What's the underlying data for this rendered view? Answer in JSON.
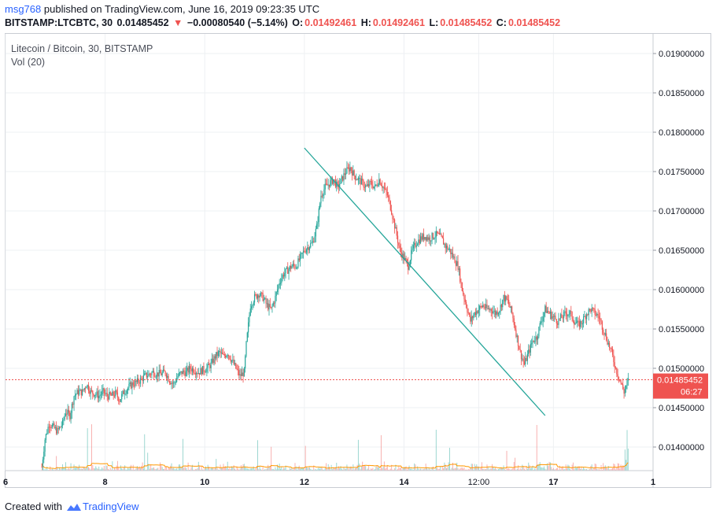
{
  "header": {
    "username": "msg768",
    "published_text": "published on TradingView.com, June 16, 2019 09:23:35 UTC",
    "symbol": "BITSTAMP:LTCBTC, 30",
    "last": "0.01485452",
    "change": "−0.00080540 (−5.14%)",
    "o_label": "O:",
    "o": "0.01492461",
    "h_label": "H:",
    "h": "0.01492461",
    "l_label": "L:",
    "l": "0.01485452",
    "c_label": "C:",
    "c": "0.01485452"
  },
  "legend": {
    "series": "Litecoin / Bitcoin, 30, BITSTAMP",
    "volume": "Vol (20)"
  },
  "footer": {
    "created_with": "Created with",
    "brand": "TradingView"
  },
  "colors": {
    "up": "#26a69a",
    "down": "#ef5350",
    "trendline": "#26a69a",
    "price_line": "#ef5350",
    "ma": "#ff9800"
  },
  "chart_data": {
    "type": "candlestick",
    "y_range": [
      0.0137,
      0.01925
    ],
    "y_ticks": [
      "0.01900000",
      "0.01850000",
      "0.01800000",
      "0.01750000",
      "0.01700000",
      "0.01650000",
      "0.01600000",
      "0.01550000",
      "0.01500000",
      "0.01450000",
      "0.01400000"
    ],
    "x_ticks": [
      {
        "label": "6",
        "t": 0
      },
      {
        "label": "8",
        "t": 96
      },
      {
        "label": "10",
        "t": 192
      },
      {
        "label": "12",
        "t": 288
      },
      {
        "label": "14",
        "t": 384
      },
      {
        "label": "12:00",
        "t": 456
      },
      {
        "label": "17",
        "t": 528
      },
      {
        "label": "1",
        "t": 624
      }
    ],
    "x_range": [
      0,
      624
    ],
    "last_price": "0.01485452",
    "countdown": "06:27",
    "trendline": {
      "from": [
        288,
        0.0178
      ],
      "to": [
        520,
        0.0144
      ]
    },
    "close_path": [
      [
        35,
        0.01375
      ],
      [
        38,
        0.0141
      ],
      [
        42,
        0.0143
      ],
      [
        46,
        0.01425
      ],
      [
        50,
        0.0142
      ],
      [
        55,
        0.0143
      ],
      [
        58,
        0.01445
      ],
      [
        62,
        0.0144
      ],
      [
        66,
        0.01465
      ],
      [
        70,
        0.0147
      ],
      [
        74,
        0.0147
      ],
      [
        78,
        0.0148
      ],
      [
        82,
        0.0147
      ],
      [
        86,
        0.01468
      ],
      [
        90,
        0.01465
      ],
      [
        94,
        0.0147
      ],
      [
        98,
        0.01465
      ],
      [
        102,
        0.01465
      ],
      [
        106,
        0.01468
      ],
      [
        110,
        0.0146
      ],
      [
        114,
        0.0147
      ],
      [
        118,
        0.01475
      ],
      [
        122,
        0.0148
      ],
      [
        126,
        0.01482
      ],
      [
        130,
        0.01485
      ],
      [
        134,
        0.0149
      ],
      [
        138,
        0.01492
      ],
      [
        142,
        0.01495
      ],
      [
        146,
        0.01493
      ],
      [
        150,
        0.01493
      ],
      [
        154,
        0.01495
      ],
      [
        158,
        0.01485
      ],
      [
        162,
        0.0148
      ],
      [
        166,
        0.0149
      ],
      [
        170,
        0.01495
      ],
      [
        174,
        0.01495
      ],
      [
        178,
        0.015
      ],
      [
        182,
        0.01498
      ],
      [
        186,
        0.01495
      ],
      [
        190,
        0.01498
      ],
      [
        194,
        0.015
      ],
      [
        198,
        0.01505
      ],
      [
        202,
        0.01515
      ],
      [
        206,
        0.0152
      ],
      [
        210,
        0.01515
      ],
      [
        214,
        0.0152
      ],
      [
        218,
        0.0151
      ],
      [
        222,
        0.015
      ],
      [
        226,
        0.0149
      ],
      [
        230,
        0.01495
      ],
      [
        232,
        0.0153
      ],
      [
        236,
        0.0158
      ],
      [
        240,
        0.0159
      ],
      [
        244,
        0.01595
      ],
      [
        248,
        0.0159
      ],
      [
        252,
        0.0158
      ],
      [
        256,
        0.01575
      ],
      [
        260,
        0.0159
      ],
      [
        264,
        0.0161
      ],
      [
        268,
        0.0162
      ],
      [
        272,
        0.01625
      ],
      [
        276,
        0.0163
      ],
      [
        280,
        0.0163
      ],
      [
        284,
        0.0164
      ],
      [
        288,
        0.0165
      ],
      [
        292,
        0.01655
      ],
      [
        296,
        0.0166
      ],
      [
        300,
        0.0168
      ],
      [
        304,
        0.0172
      ],
      [
        308,
        0.0173
      ],
      [
        312,
        0.01735
      ],
      [
        316,
        0.0174
      ],
      [
        320,
        0.0173
      ],
      [
        324,
        0.0174
      ],
      [
        328,
        0.0175
      ],
      [
        332,
        0.01755
      ],
      [
        336,
        0.01745
      ],
      [
        340,
        0.0174
      ],
      [
        344,
        0.01735
      ],
      [
        348,
        0.0173
      ],
      [
        352,
        0.01735
      ],
      [
        356,
        0.0173
      ],
      [
        360,
        0.0174
      ],
      [
        364,
        0.0173
      ],
      [
        368,
        0.0172
      ],
      [
        372,
        0.017
      ],
      [
        376,
        0.01675
      ],
      [
        380,
        0.0165
      ],
      [
        384,
        0.0164
      ],
      [
        388,
        0.0163
      ],
      [
        392,
        0.0165
      ],
      [
        396,
        0.0166
      ],
      [
        400,
        0.01665
      ],
      [
        404,
        0.01668
      ],
      [
        408,
        0.01665
      ],
      [
        412,
        0.01668
      ],
      [
        416,
        0.0167
      ],
      [
        420,
        0.01665
      ],
      [
        424,
        0.01655
      ],
      [
        428,
        0.0165
      ],
      [
        432,
        0.0164
      ],
      [
        436,
        0.0163
      ],
      [
        440,
        0.016
      ],
      [
        444,
        0.0158
      ],
      [
        448,
        0.0156
      ],
      [
        452,
        0.0157
      ],
      [
        456,
        0.01575
      ],
      [
        460,
        0.0158
      ],
      [
        464,
        0.01575
      ],
      [
        468,
        0.01575
      ],
      [
        472,
        0.0157
      ],
      [
        476,
        0.01575
      ],
      [
        480,
        0.0159
      ],
      [
        484,
        0.01585
      ],
      [
        488,
        0.0157
      ],
      [
        492,
        0.01545
      ],
      [
        496,
        0.0152
      ],
      [
        500,
        0.01505
      ],
      [
        504,
        0.0152
      ],
      [
        508,
        0.01535
      ],
      [
        512,
        0.0154
      ],
      [
        516,
        0.0156
      ],
      [
        520,
        0.01575
      ],
      [
        524,
        0.0157
      ],
      [
        528,
        0.01565
      ],
      [
        532,
        0.0156
      ],
      [
        536,
        0.01565
      ],
      [
        540,
        0.0157
      ],
      [
        544,
        0.0157
      ],
      [
        548,
        0.0156
      ],
      [
        552,
        0.01555
      ],
      [
        556,
        0.0156
      ],
      [
        560,
        0.0157
      ],
      [
        564,
        0.01575
      ],
      [
        568,
        0.0157
      ],
      [
        572,
        0.01565
      ],
      [
        576,
        0.0155
      ],
      [
        580,
        0.01535
      ],
      [
        584,
        0.0152
      ],
      [
        588,
        0.015
      ],
      [
        592,
        0.01485
      ],
      [
        596,
        0.0147
      ],
      [
        600,
        0.01485
      ]
    ]
  }
}
